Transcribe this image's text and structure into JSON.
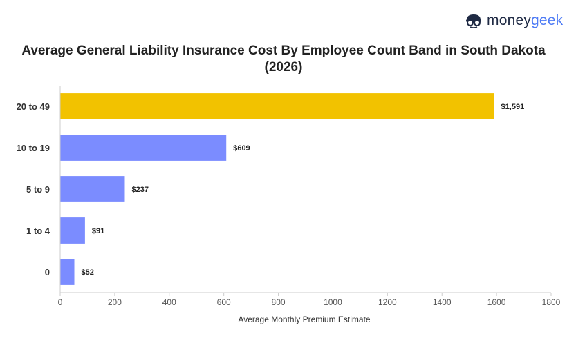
{
  "logo": {
    "text_a": "money",
    "text_b": "geek",
    "icon": "moneygeek-mascot-icon"
  },
  "chart_data": {
    "type": "bar",
    "orientation": "horizontal",
    "title": "Average General Liability Insurance Cost By Employee Count Band in South Dakota (2026)",
    "xlabel": "Average Monthly Premium Estimate",
    "ylabel": "",
    "categories": [
      "20 to 49",
      "10 to 19",
      "5 to 9",
      "1 to 4",
      "0"
    ],
    "values": [
      1591,
      609,
      237,
      91,
      52
    ],
    "value_labels": [
      "$1,591",
      "$609",
      "$237",
      "$91",
      "$52"
    ],
    "xlim": [
      0,
      1800
    ],
    "xticks": [
      0,
      200,
      400,
      600,
      800,
      1000,
      1200,
      1400,
      1600,
      1800
    ],
    "grid": false,
    "highlight_index": 0,
    "colors": {
      "highlight": "#f2c200",
      "default": "#7b8cff",
      "axis": "#cccccc"
    }
  }
}
